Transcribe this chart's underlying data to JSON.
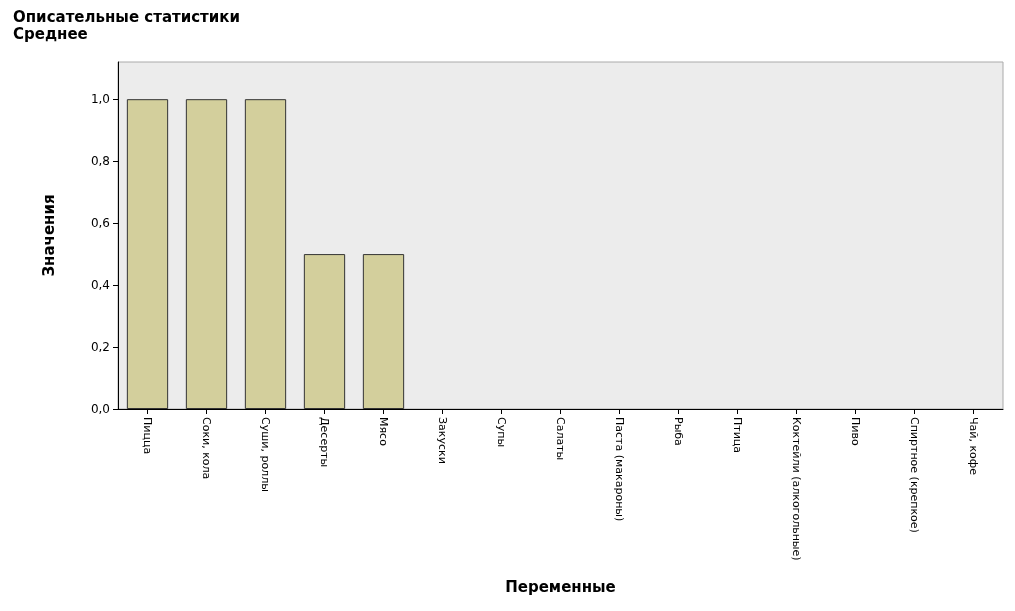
{
  "chart_data": {
    "type": "bar",
    "title": "Описательные статистики",
    "subtitle": "Среднее",
    "xlabel": "Переменные",
    "ylabel": "Значения",
    "categories": [
      "Пицца",
      "Соки, кола",
      "Суши, роллы",
      "Десерты",
      "Мясо",
      "Закуски",
      "Супы",
      "Салаты",
      "Паста (макароны)",
      "Рыба",
      "Птица",
      "Коктейли (алкогольные)",
      "Пиво",
      "Спиртное (крепкое)",
      "Чай, кофе"
    ],
    "values": [
      1,
      1,
      1,
      0.5,
      0.5,
      0,
      0,
      0,
      0,
      0,
      0,
      0,
      0,
      0,
      0
    ],
    "color": "#d3cf9c",
    "ylim": [
      0,
      1.12
    ],
    "yticks": [
      {
        "value": 0,
        "label": "0,0"
      },
      {
        "value": 0.2,
        "label": "0,2"
      },
      {
        "value": 0.4,
        "label": "0,4"
      },
      {
        "value": 0.6,
        "label": "0,6"
      },
      {
        "value": 0.8,
        "label": "0,8"
      },
      {
        "value": 1,
        "label": "1,0"
      }
    ],
    "grid": false
  }
}
